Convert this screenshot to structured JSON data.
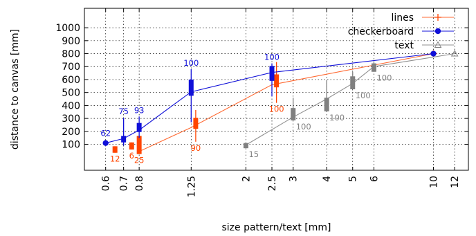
{
  "chart_data": {
    "type": "line",
    "xlabel": "size pattern/text [mm]",
    "ylabel": "distance to canvas [mm]",
    "x_scale": "log",
    "xlim": [
      0.5,
      13.5
    ],
    "ylim": [
      -100,
      1150
    ],
    "x_ticks": [
      {
        "value": 0.6,
        "label": "0.6"
      },
      {
        "value": 0.7,
        "label": "0.7"
      },
      {
        "value": 0.8,
        "label": "0.8"
      },
      {
        "value": 1.25,
        "label": "1.25"
      },
      {
        "value": 2,
        "label": "2"
      },
      {
        "value": 2.5,
        "label": "2.5"
      },
      {
        "value": 3,
        "label": "3"
      },
      {
        "value": 4,
        "label": "4"
      },
      {
        "value": 5,
        "label": "5"
      },
      {
        "value": 6,
        "label": "6"
      },
      {
        "value": 10,
        "label": "10"
      },
      {
        "value": 12,
        "label": "12"
      }
    ],
    "y_ticks": [
      {
        "value": 100,
        "label": "100"
      },
      {
        "value": 200,
        "label": "200"
      },
      {
        "value": 300,
        "label": "300"
      },
      {
        "value": 400,
        "label": "400"
      },
      {
        "value": 500,
        "label": "500"
      },
      {
        "value": 600,
        "label": "600"
      },
      {
        "value": 700,
        "label": "700"
      },
      {
        "value": 800,
        "label": "800"
      },
      {
        "value": 900,
        "label": "900"
      },
      {
        "value": 1000,
        "label": "1000"
      }
    ],
    "grid": true,
    "legend_position": "top-right",
    "series": [
      {
        "name": "lines",
        "color": "#ff4500",
        "line_color": "#ff6a33",
        "marker": "plus",
        "line": [
          [
            0.8,
            45
          ],
          [
            1.25,
            230
          ],
          [
            2.5,
            560
          ],
          [
            10,
            800
          ]
        ],
        "boxes": [
          {
            "x": 0.65,
            "q1": 35,
            "q3": 85,
            "min": 35,
            "max": 85,
            "label": "12"
          },
          {
            "x": 0.75,
            "q1": 60,
            "q3": 115,
            "min": 60,
            "max": 115,
            "label": "6"
          },
          {
            "x": 0.8,
            "q1": 25,
            "q3": 165,
            "min": 25,
            "max": 165,
            "label": "25"
          },
          {
            "x": 1.3,
            "q1": 220,
            "q3": 305,
            "min": 120,
            "max": 365,
            "label": "90"
          },
          {
            "x": 2.6,
            "q1": 540,
            "q3": 640,
            "min": 420,
            "max": 735,
            "label": "100"
          }
        ]
      },
      {
        "name": "checkerboard",
        "color": "#1010d8",
        "line_color": "#1010d8",
        "marker": "circle",
        "line": [
          [
            0.6,
            110
          ],
          [
            0.7,
            145
          ],
          [
            0.8,
            210
          ],
          [
            1.25,
            505
          ],
          [
            2.5,
            655
          ],
          [
            10,
            800
          ]
        ],
        "boxes": [
          {
            "x": 0.7,
            "q1": 115,
            "q3": 165,
            "min": 90,
            "max": 305,
            "label": "75"
          },
          {
            "x": 0.8,
            "q1": 195,
            "q3": 265,
            "min": 150,
            "max": 315,
            "label": "93"
          },
          {
            "x": 1.25,
            "q1": 475,
            "q3": 600,
            "min": 270,
            "max": 680,
            "label": "100"
          },
          {
            "x": 2.5,
            "q1": 590,
            "q3": 705,
            "min": 470,
            "max": 725,
            "label": "100"
          }
        ],
        "point_labels": [
          {
            "x": 0.6,
            "label": "62"
          }
        ]
      },
      {
        "name": "text",
        "color": "#808080",
        "line_color": "#909090",
        "marker": "triangle",
        "line": [
          [
            2,
            95
          ],
          [
            3,
            310
          ],
          [
            4,
            450
          ],
          [
            5,
            570
          ],
          [
            6,
            700
          ],
          [
            12,
            800
          ]
        ],
        "boxes": [
          {
            "x": 2,
            "q1": 70,
            "q3": 110,
            "min": 70,
            "max": 110,
            "label": "15"
          },
          {
            "x": 3,
            "q1": 285,
            "q3": 380,
            "min": 285,
            "max": 460,
            "label": "100"
          },
          {
            "x": 4,
            "q1": 355,
            "q3": 460,
            "min": 355,
            "max": 595,
            "label": "100"
          },
          {
            "x": 5,
            "q1": 525,
            "q3": 625,
            "min": 525,
            "max": 660,
            "label": "100"
          },
          {
            "x": 6,
            "q1": 660,
            "q3": 725,
            "min": 660,
            "max": 740,
            "label": "100"
          }
        ]
      }
    ]
  }
}
